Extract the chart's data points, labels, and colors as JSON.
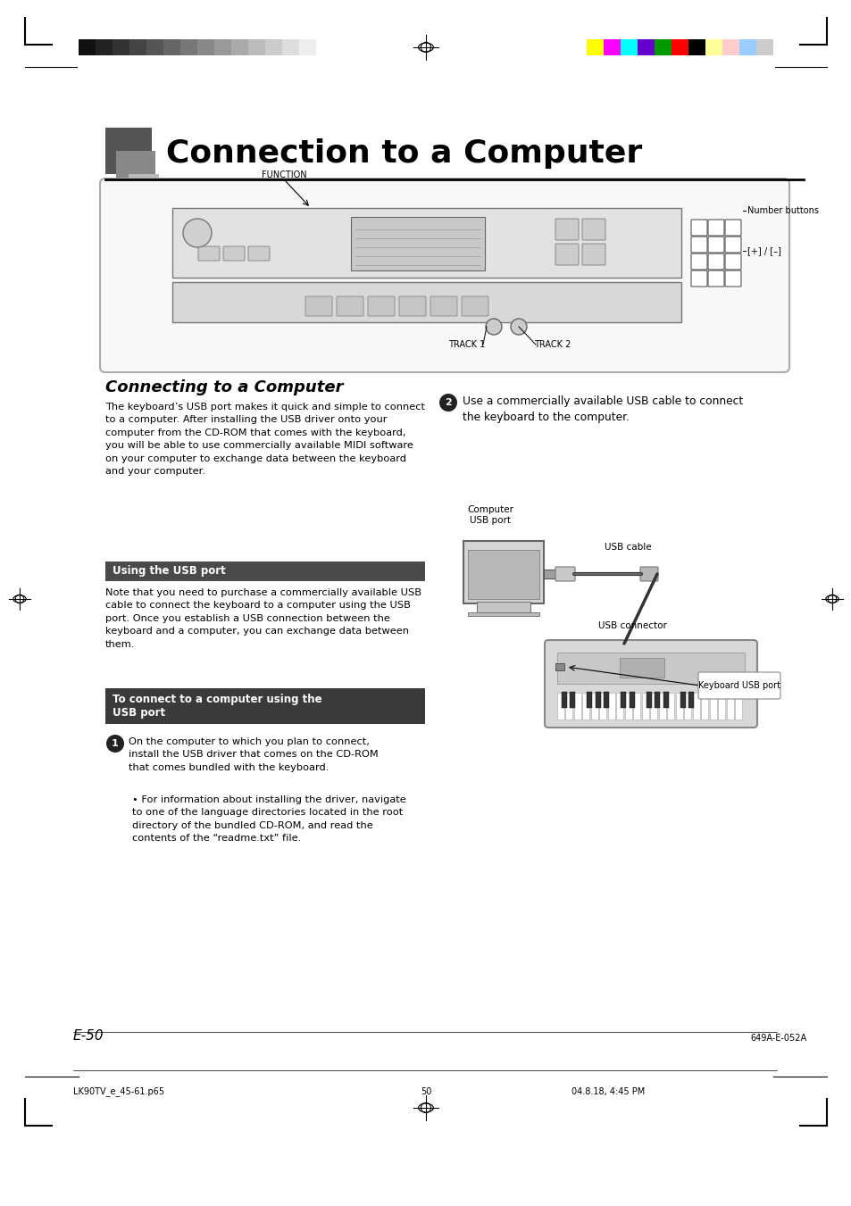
{
  "title": "Connection to a Computer",
  "page_bg": "#ffffff",
  "section_title": "Connecting to a Computer",
  "body_text_left": "The keyboard’s USB port makes it quick and simple to connect\nto a computer. After installing the USB driver onto your\ncomputer from the CD-ROM that comes with the keyboard,\nyou will be able to use commercially available MIDI software\non your computer to exchange data between the keyboard\nand your computer.",
  "usb_section_title": "Using the USB port",
  "connect_section_title": "To connect to a computer using the\nUSB port",
  "step1_circle_text": "1",
  "step1_text": "On the computer to which you plan to connect,\ninstall the USB driver that comes on the CD-ROM\nthat comes bundled with the keyboard.",
  "step1_bullet": "For information about installing the driver, navigate\nto one of the language directories located in the root\ndirectory of the bundled CD-ROM, and read the\ncontents of the “readme.txt” file.",
  "step2_circle_text": "2",
  "step2_text": "Use a commercially available USB cable to connect\nthe keyboard to the computer.",
  "usb_note_text": "Note that you need to purchase a commercially available USB\ncable to connect the keyboard to a computer using the USB\nport. Once you establish a USB connection between the\nkeyboard and a computer, you can exchange data between\nthem.",
  "keyboard_diagram_label_function": "FUNCTION",
  "keyboard_diagram_label_number": "Number buttons",
  "keyboard_diagram_label_plusminus": "[+] / [–]",
  "keyboard_diagram_label_track1": "TRACK 1",
  "keyboard_diagram_label_track2": "TRACK 2",
  "usb_diagram_computer_port": "Computer\nUSB port",
  "usb_diagram_cable": "USB cable",
  "usb_diagram_connector": "USB connector",
  "usb_diagram_keyboard_port": "Keyboard USB port",
  "page_number": "E-50",
  "footer_left": "LK90TV_e_45-61.p65",
  "footer_center": "50",
  "footer_right": "04.8.18, 4:45 PM",
  "footer_right2": "649A-E-052A",
  "grayscale_bar_colors": [
    "#111111",
    "#222222",
    "#333333",
    "#444444",
    "#555555",
    "#666666",
    "#777777",
    "#888888",
    "#999999",
    "#aaaaaa",
    "#bbbbbb",
    "#cccccc",
    "#dddddd",
    "#eeeeee",
    "#ffffff"
  ],
  "color_bar_colors": [
    "#ffff00",
    "#ff00ff",
    "#00ffff",
    "#6600cc",
    "#009900",
    "#ff0000",
    "#000000",
    "#ffff99",
    "#ffcccc",
    "#99ccff",
    "#cccccc"
  ]
}
